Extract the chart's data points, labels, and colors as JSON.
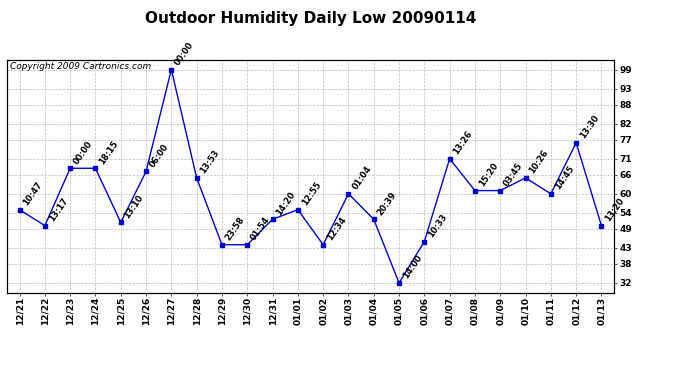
{
  "title": "Outdoor Humidity Daily Low 20090114",
  "copyright": "Copyright 2009 Cartronics.com",
  "x_labels": [
    "12/21",
    "12/22",
    "12/23",
    "12/24",
    "12/25",
    "12/26",
    "12/27",
    "12/28",
    "12/29",
    "12/30",
    "12/31",
    "01/01",
    "01/02",
    "01/03",
    "01/04",
    "01/05",
    "01/06",
    "01/07",
    "01/08",
    "01/09",
    "01/10",
    "01/11",
    "01/12",
    "01/13"
  ],
  "y_values": [
    55,
    50,
    68,
    68,
    51,
    67,
    99,
    65,
    44,
    44,
    52,
    55,
    44,
    60,
    52,
    32,
    45,
    71,
    61,
    61,
    65,
    60,
    76,
    50
  ],
  "time_labels": [
    "10:47",
    "13:17",
    "00:00",
    "18:15",
    "13:10",
    "06:00",
    "00:00",
    "13:53",
    "23:58",
    "01:54",
    "14:20",
    "12:55",
    "12:34",
    "01:04",
    "20:39",
    "14:00",
    "10:33",
    "13:26",
    "15:20",
    "03:45",
    "10:26",
    "14:45",
    "13:30",
    "13:20"
  ],
  "line_color": "#0000CC",
  "marker_color": "#0000CC",
  "grid_color": "#BBBBBB",
  "bg_color": "#FFFFFF",
  "y_ticks_right": [
    32,
    38,
    43,
    49,
    54,
    60,
    66,
    71,
    77,
    82,
    88,
    93,
    99
  ],
  "ylim": [
    29,
    102
  ],
  "title_fontsize": 11,
  "tick_fontsize": 6.5,
  "annotation_fontsize": 6,
  "copyright_fontsize": 6.5
}
